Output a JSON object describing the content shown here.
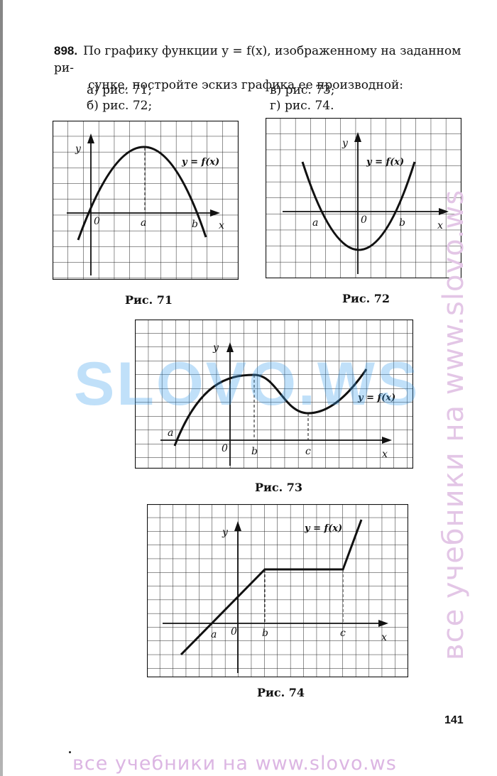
{
  "problem": {
    "number": "898.",
    "text_line1": "По графику функции y = f(x), изображенному на заданном ри-",
    "text_line2": "сунке, постройте эскиз графика ее производной:"
  },
  "items": {
    "a": "а) рис. 71;",
    "b": "б) рис. 72;",
    "v": "в) рис. 73;",
    "g": "г) рис. 74."
  },
  "figures": {
    "fig71": {
      "caption": "Рис. 71",
      "y": "y",
      "x": "x",
      "origin": "0",
      "a": "a",
      "b": "b",
      "func": "y = f(x)"
    },
    "fig72": {
      "caption": "Рис. 72",
      "y": "y",
      "x": "x",
      "origin": "0",
      "a": "a",
      "b": "b",
      "func": "y = f(x)"
    },
    "fig73": {
      "caption": "Рис. 73",
      "y": "y",
      "x": "x",
      "origin": "0",
      "a": "a",
      "b": "b",
      "c": "c",
      "func": "y = f(x)"
    },
    "fig74": {
      "caption": "Рис. 74",
      "y": "y",
      "x": "x",
      "origin": "0",
      "a": "a",
      "b": "b",
      "c": "c",
      "func": "y = f(x)"
    }
  },
  "page_number": "141",
  "watermarks": {
    "center": "SLOVO.WS",
    "side": "все учебники на www.slovo.ws",
    "bottom": "все учебники на www.slovo.ws"
  },
  "colors": {
    "watermark_blue": "#3ea0ee",
    "watermark_pink": "#dcb6e3"
  }
}
